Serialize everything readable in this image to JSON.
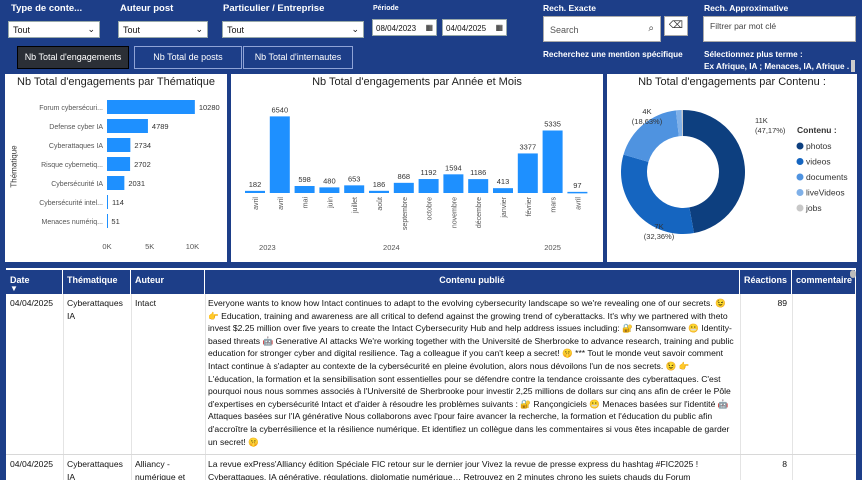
{
  "filters": {
    "type_label": "Type de conte...",
    "type_value": "Tout",
    "author_label": "Auteur post",
    "author_value": "Tout",
    "particulier_label": "Particulier / Entreprise",
    "particulier_value": "Tout",
    "period_label": "Période",
    "date_from": "08/04/2023",
    "date_to": "04/04/2025",
    "exact_label": "Rech. Exacte",
    "search_placeholder": "Search",
    "exact_hint": "Recherchez une mention spécifique",
    "approx_label": "Rech. Approximative",
    "approx_placeholder": "Filtrer par mot clé",
    "approx_hint": "Sélectionnez plus terme :",
    "approx_terms": "Ex Afrique, IA ; Menaces, IA, Afrique ..."
  },
  "tabs": [
    "Nb Total d'engagements",
    "Nb Total de posts",
    "Nb Total d'internautes"
  ],
  "chart_data": [
    {
      "type": "bar",
      "orientation": "horizontal",
      "title": "Nb Total d'engagements par Thématique",
      "ylabel": "Thématique",
      "categories": [
        "Forum cybersécuri...",
        "Defense cyber IA",
        "Cyberattaques IA",
        "Risque cybernetiq...",
        "Cybersécurité IA",
        "Cybersécurité intel...",
        "Menaces numériq..."
      ],
      "values": [
        10280,
        4789,
        2734,
        2702,
        2031,
        114,
        51
      ],
      "value_labels": [
        "10280",
        "4789",
        "2734",
        "2702",
        "2031",
        "114",
        "51"
      ],
      "xticks": [
        "0K",
        "5K",
        "10K"
      ],
      "xlim": [
        0,
        11000
      ]
    },
    {
      "type": "bar",
      "title": "Nb Total d'engagements par Année et Mois",
      "categories": [
        "avril",
        "avril",
        "mai",
        "juin",
        "juillet",
        "août",
        "septembre",
        "octobre",
        "novembre",
        "décembre",
        "janvier",
        "février",
        "mars",
        "avril"
      ],
      "values": [
        182,
        6540,
        598,
        480,
        653,
        186,
        868,
        1192,
        1594,
        1186,
        413,
        3377,
        5335,
        97
      ],
      "value_labels": [
        "182",
        "6540",
        "598",
        "480",
        "653",
        "186",
        "868",
        "1192",
        "1594",
        "1186",
        "413",
        "3377",
        "5335",
        "97"
      ],
      "years": [
        "2023",
        "2024",
        "2025"
      ],
      "ylim": [
        0,
        7000
      ]
    },
    {
      "type": "pie",
      "donut": true,
      "title": "Nb Total d'engagements par Contenu :",
      "legend_title": "Contenu :",
      "labels": [
        "photos",
        "videos",
        "documents",
        "liveVideos",
        "jobs"
      ],
      "values": [
        47.17,
        32.36,
        18.63,
        1.5,
        0.34
      ],
      "colors": [
        "#0d3f7f",
        "#1565c0",
        "#4f93e0",
        "#7fb0e8",
        "#c8c8c8"
      ],
      "callouts": [
        {
          "value": "11K",
          "pct": "(47,17%)"
        },
        {
          "value": "7K",
          "pct": "(32,36%)"
        },
        {
          "value": "4K",
          "pct": "(18,63%)"
        }
      ]
    }
  ],
  "table": {
    "headers": [
      "Date",
      "Thématique",
      "Auteur",
      "Contenu publié",
      "Réactions",
      "commentaire"
    ],
    "rows": [
      {
        "date": "04/04/2025",
        "theme": "Cyberattaques IA",
        "author": "Intact",
        "content": "Everyone wants to know how Intact continues to adapt to the evolving cybersecurity landscape so we're revealing one of our secrets. 😉 👉 Education, training and awareness are all critical to defend against the growing trend of cyberattacks. It's why we partnered with theto invest $2.25 million over five years to create the Intact Cybersecurity Hub and help address issues including: 🔐 Ransomware 😬 Identity-based threats 🤖 Generative AI attacks We're working together with the Université de Sherbrooke to advance research, training and public education for stronger cyber and digital resilience. Tag a colleague if you can't keep a secret! 🤫 *** Tout le monde veut savoir comment Intact continue à s'adapter au contexte de la cybersécurité en pleine évolution, alors nous dévoilons l'un de nos secrets. 😉 👉 L'éducation, la formation et la sensibilisation sont essentielles pour se défendre contre la tendance croissante des cyberattaques. C'est pourquoi nous nous sommes associés à l'Université de Sherbrooke pour investir 2,25 millions de dollars sur cinq ans afin de créer le Pôle d'expertises en cybersécurité Intact et d'aider à résoudre les problèmes suivants : 🔐 Rançongiciels 😬 Menaces basées sur l'identité 🤖 Attaques basées sur l'IA générative Nous collaborons avec l'pour faire avancer la recherche, la formation et l'éducation du public afin d'accroître la cyberrésilience et la résilience numérique. Et identifiez un collègue dans les commentaires si vous êtes incapable de garder un secret! 🤫",
        "reactions": "89",
        "comments": ""
      },
      {
        "date": "04/04/2025",
        "theme": "Cyberattaques IA",
        "author": "Alliancy - numérique et",
        "content": "La revue exPress'Alliancy édition Spéciale FIC retour sur le dernier jour Vivez la revue de presse express du hashtag #FIC2025 ! Cyberattaques, IA générative, régulations, diplomatie numérique… Retrouvez en 2 minutes chrono les sujets chauds du Forum",
        "reactions": "8",
        "comments": ""
      }
    ]
  }
}
